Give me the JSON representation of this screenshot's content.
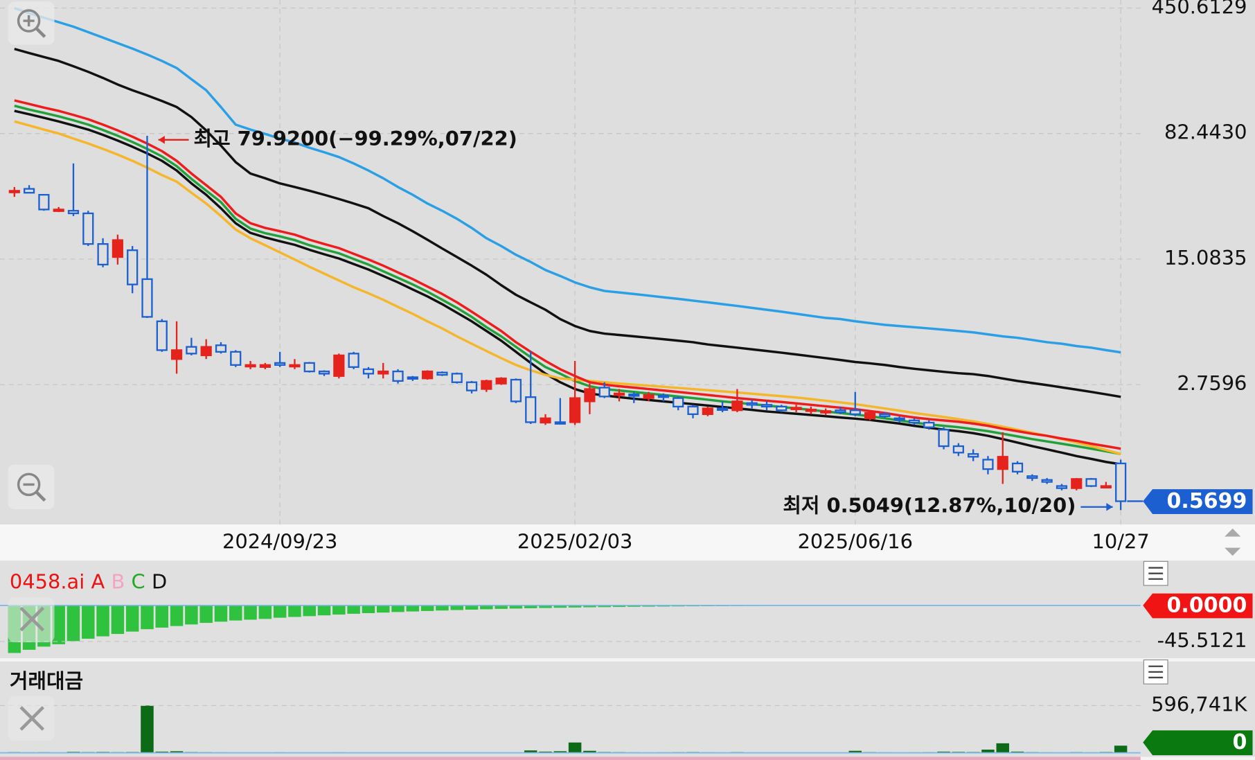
{
  "chart_data": [
    {
      "type": "candlestick",
      "log": true,
      "grid": true,
      "up_color": "#e5231c",
      "down_color": "#1b5fd1",
      "ylim": [
        0.4156,
        502
      ],
      "yticks": [
        450.6129,
        {
          "value": 82.443,
          "label": "82.4430"
        },
        15.0835,
        2.7596
      ],
      "categories": [
        null,
        null,
        null,
        null,
        null,
        null,
        null,
        null,
        null,
        null,
        null,
        null,
        null,
        null,
        null,
        null,
        null,
        null,
        "2024/09/23",
        null,
        null,
        null,
        null,
        null,
        null,
        null,
        null,
        null,
        null,
        null,
        null,
        null,
        null,
        null,
        null,
        null,
        null,
        null,
        "2025/02/03",
        null,
        null,
        null,
        null,
        null,
        null,
        null,
        null,
        null,
        null,
        null,
        null,
        null,
        null,
        null,
        null,
        null,
        null,
        "2025/06/16",
        null,
        null,
        null,
        null,
        null,
        null,
        null,
        null,
        null,
        null,
        null,
        null,
        null,
        null,
        null,
        null,
        null,
        "10/27"
      ],
      "open": [
        37.5,
        39,
        36,
        29,
        29,
        28,
        18.5,
        15.5,
        17,
        11.5,
        6.5,
        3.9,
        4.6,
        4.1,
        4.7,
        4.3,
        3.55,
        3.5,
        3.7,
        3.55,
        3.7,
        3.3,
        3.1,
        4.2,
        3.4,
        3.2,
        3.3,
        3.05,
        3.0,
        3.25,
        3.2,
        2.85,
        2.6,
        2.8,
        2.95,
        2.33,
        1.65,
        1.66,
        1.66,
        2.2,
        2.65,
        2.4,
        2.42,
        2.3,
        2.38,
        2.3,
        2.05,
        1.85,
        2.0,
        1.95,
        2.15,
        2.1,
        2.05,
        1.98,
        1.93,
        1.9,
        1.95,
        1.95,
        1.75,
        1.85,
        1.75,
        1.7,
        1.65,
        1.5,
        1.2,
        1.08,
        1.0,
        0.88,
        0.95,
        0.8,
        0.76,
        0.7,
        0.68,
        0.77,
        0.69,
        0.95
      ],
      "high": [
        40,
        41,
        36,
        30.5,
        55,
        29,
        20,
        21,
        18,
        79.92,
        6.7,
        6.5,
        5.2,
        5.1,
        4.9,
        4.4,
        3.8,
        3.7,
        4.3,
        3.9,
        3.75,
        3.35,
        4.2,
        4.3,
        3.5,
        3.7,
        3.4,
        3.1,
        3.35,
        3.3,
        3.25,
        2.9,
        2.95,
        3.05,
        3.0,
        4.35,
        1.85,
        2.3,
        3.8,
        2.8,
        2.85,
        2.6,
        2.5,
        2.5,
        2.45,
        2.35,
        2.1,
        2.05,
        2.2,
        2.6,
        2.25,
        2.2,
        2.1,
        2.1,
        2.05,
        2.0,
        2.05,
        2.5,
        1.9,
        1.9,
        1.8,
        1.75,
        1.7,
        1.55,
        1.25,
        1.15,
        1.05,
        1.45,
        0.98,
        0.82,
        0.78,
        0.72,
        0.78,
        0.78,
        0.74,
        1.0
      ],
      "low": [
        35,
        37,
        29,
        28.5,
        27,
        18,
        13.5,
        14,
        9.5,
        6.8,
        4.3,
        3.2,
        4.1,
        3.9,
        4.2,
        3.5,
        3.4,
        3.4,
        3.5,
        3.4,
        3.25,
        3.1,
        3.0,
        3.4,
        3.0,
        3.0,
        2.8,
        2.9,
        2.95,
        3.1,
        2.8,
        2.45,
        2.5,
        2.75,
        2.15,
        1.62,
        1.6,
        1.62,
        1.6,
        1.85,
        2.3,
        2.2,
        2.15,
        2.2,
        2.2,
        1.95,
        1.75,
        1.8,
        1.9,
        1.9,
        2.0,
        1.95,
        1.9,
        1.9,
        1.85,
        1.82,
        1.85,
        1.8,
        1.7,
        1.75,
        1.65,
        1.6,
        1.5,
        1.15,
        1.05,
        0.98,
        0.82,
        0.72,
        0.82,
        0.75,
        0.72,
        0.66,
        0.66,
        0.69,
        0.68,
        0.5049
      ],
      "close": [
        38,
        37,
        29.5,
        29.5,
        28,
        18.5,
        14,
        19.5,
        10.7,
        6.9,
        4.4,
        4.4,
        4.2,
        4.6,
        4.3,
        3.6,
        3.6,
        3.6,
        3.6,
        3.6,
        3.3,
        3.2,
        4.1,
        3.5,
        3.2,
        3.3,
        2.9,
        3.0,
        3.3,
        3.15,
        2.85,
        2.55,
        2.9,
        3.0,
        2.2,
        1.66,
        1.75,
        1.64,
        2.3,
        2.6,
        2.35,
        2.45,
        2.38,
        2.4,
        2.33,
        2.05,
        1.85,
        2.0,
        1.98,
        2.2,
        2.1,
        2.05,
        1.95,
        2.02,
        1.97,
        1.93,
        1.9,
        1.85,
        1.88,
        1.8,
        1.72,
        1.65,
        1.55,
        1.2,
        1.1,
        1.04,
        0.88,
        1.04,
        0.85,
        0.78,
        0.74,
        0.68,
        0.77,
        0.7,
        0.7,
        0.5699
      ],
      "overlays": [
        {
          "color": "#2a9fe6",
          "values": [
            450,
            420,
            395,
            372,
            350,
            325,
            302,
            280,
            260,
            240,
            220,
            200,
            172,
            148,
            118,
            93,
            87,
            82,
            77,
            73,
            68,
            64,
            60,
            55,
            50,
            45,
            40,
            36,
            32,
            29,
            26,
            23,
            20,
            18,
            16,
            14.5,
            13,
            12,
            11,
            10.3,
            9.8,
            9.6,
            9.4,
            9.2,
            9.0,
            8.8,
            8.6,
            8.4,
            8.2,
            8.0,
            7.8,
            7.6,
            7.4,
            7.2,
            7.0,
            6.8,
            6.7,
            6.5,
            6.35,
            6.2,
            6.1,
            6.0,
            5.9,
            5.8,
            5.7,
            5.6,
            5.45,
            5.3,
            5.2,
            5.05,
            4.9,
            4.8,
            4.65,
            4.55,
            4.4,
            4.27
          ]
        },
        {
          "color": "#111111",
          "values": [
            259,
            245,
            232,
            220,
            205,
            190,
            175,
            160,
            148,
            138,
            128,
            118,
            103,
            86,
            70,
            56,
            48,
            45,
            42,
            40,
            38,
            36,
            34,
            32,
            30,
            27,
            24.5,
            22,
            19.6,
            17.4,
            15.5,
            13.8,
            12.2,
            10.6,
            9.3,
            8.4,
            7.6,
            6.7,
            6.1,
            5.7,
            5.5,
            5.4,
            5.3,
            5.2,
            5.1,
            5.0,
            4.9,
            4.75,
            4.65,
            4.55,
            4.45,
            4.35,
            4.25,
            4.15,
            4.05,
            3.95,
            3.85,
            3.75,
            3.68,
            3.6,
            3.5,
            3.42,
            3.35,
            3.28,
            3.22,
            3.18,
            3.1,
            3.0,
            2.9,
            2.82,
            2.74,
            2.66,
            2.58,
            2.5,
            2.42,
            2.34
          ]
        },
        {
          "color": "#111111",
          "values": [
            112,
            107,
            102,
            97,
            92,
            87,
            81,
            75,
            69,
            63,
            57,
            50,
            42,
            36,
            30,
            24.5,
            21.5,
            20.2,
            19.2,
            18.3,
            17.1,
            16.1,
            15.2,
            14.1,
            13.1,
            12,
            11,
            10,
            9.1,
            8.2,
            7.3,
            6.5,
            5.7,
            5.0,
            4.3,
            3.7,
            3.2,
            2.85,
            2.6,
            2.45,
            2.38,
            2.33,
            2.28,
            2.24,
            2.2,
            2.16,
            2.12,
            2.08,
            2.04,
            2.0,
            1.96,
            1.92,
            1.89,
            1.86,
            1.83,
            1.8,
            1.77,
            1.74,
            1.71,
            1.67,
            1.63,
            1.58,
            1.54,
            1.5,
            1.47,
            1.43,
            1.38,
            1.32,
            1.26,
            1.2,
            1.15,
            1.1,
            1.05,
            1.01,
            0.97,
            0.94
          ]
        },
        {
          "color": "#22a03a",
          "values": [
            120,
            114,
            109,
            104,
            98.6,
            93,
            86.5,
            80,
            73.5,
            67,
            60.5,
            53,
            44.6,
            38.1,
            32.6,
            26,
            22.8,
            21.4,
            20.5,
            19.5,
            18.2,
            17.2,
            16.3,
            15.1,
            14,
            12.8,
            11.7,
            10.7,
            9.7,
            8.7,
            7.8,
            6.9,
            6.0,
            5.3,
            4.6,
            4.0,
            3.5,
            3.2,
            2.9,
            2.7,
            2.6,
            2.55,
            2.5,
            2.45,
            2.4,
            2.35,
            2.3,
            2.25,
            2.2,
            2.16,
            2.12,
            2.08,
            2.04,
            2.0,
            1.96,
            1.92,
            1.88,
            1.84,
            1.8,
            1.75,
            1.7,
            1.65,
            1.61,
            1.58,
            1.55,
            1.51,
            1.47,
            1.42,
            1.37,
            1.32,
            1.28,
            1.24,
            1.2,
            1.16,
            1.12,
            1.08
          ]
        },
        {
          "color": "#f5b62a",
          "values": [
            97,
            92,
            87,
            82.5,
            77,
            72,
            67,
            62,
            57,
            52,
            47,
            43,
            37,
            32,
            27,
            22.5,
            20,
            18.2,
            16.5,
            15,
            13.6,
            12.4,
            11.3,
            10.3,
            9.5,
            8.7,
            7.9,
            7.2,
            6.5,
            5.9,
            5.3,
            4.8,
            4.35,
            3.95,
            3.6,
            3.35,
            3.15,
            3.0,
            2.95,
            2.9,
            2.85,
            2.8,
            2.76,
            2.72,
            2.68,
            2.64,
            2.6,
            2.56,
            2.52,
            2.48,
            2.44,
            2.4,
            2.36,
            2.32,
            2.27,
            2.22,
            2.17,
            2.12,
            2.06,
            2.0,
            1.94,
            1.88,
            1.83,
            1.78,
            1.73,
            1.68,
            1.62,
            1.56,
            1.5,
            1.44,
            1.38,
            1.32,
            1.26,
            1.2,
            1.14,
            1.08
          ]
        },
        {
          "color": "#ee1c1c",
          "values": [
            129,
            123,
            117,
            112,
            106,
            100,
            93,
            86,
            79,
            72,
            65,
            57,
            48,
            41,
            35,
            28,
            24.5,
            23,
            22,
            21,
            19.6,
            18.5,
            17.5,
            16.2,
            15,
            13.8,
            12.6,
            11.5,
            10.4,
            9.4,
            8.4,
            7.4,
            6.5,
            5.7,
            4.9,
            4.3,
            3.8,
            3.4,
            3.1,
            2.85,
            2.76,
            2.7,
            2.65,
            2.6,
            2.55,
            2.5,
            2.45,
            2.4,
            2.35,
            2.3,
            2.26,
            2.22,
            2.18,
            2.14,
            2.1,
            2.06,
            2.02,
            1.98,
            1.93,
            1.88,
            1.82,
            1.77,
            1.73,
            1.7,
            1.67,
            1.63,
            1.58,
            1.52,
            1.47,
            1.42,
            1.38,
            1.33,
            1.29,
            1.24,
            1.2,
            1.16
          ]
        }
      ],
      "high_label": "최고 79.9200(−99.29%,07/22)",
      "low_label": "최저 0.5049(12.87%,10/20)"
    },
    {
      "type": "bar",
      "grid": true,
      "legend": [
        {
          "text": "0458.ai",
          "color": "#ee1111"
        },
        {
          "text": "A",
          "color": "#ee1111"
        },
        {
          "text": "B",
          "color": "#f5a3c4"
        },
        {
          "text": "C",
          "color": "#22aa22"
        },
        {
          "text": "D",
          "color": "#111111"
        }
      ],
      "color": "#2ec23e",
      "zero_badge_color": "#f01414",
      "ylim": [
        -64.7,
        54.6
      ],
      "yticks": [
        {
          "value": 0,
          "label": "0.0000"
        },
        -45.5121
      ],
      "values": [
        -60,
        -56,
        -52,
        -49,
        -45,
        -42,
        -39,
        -36,
        -33,
        -30,
        -28,
        -26,
        -24,
        -22,
        -20.5,
        -19,
        -18,
        -17,
        -15.5,
        -14.5,
        -13.5,
        -12.5,
        -11.5,
        -10.5,
        -9.7,
        -9,
        -8.3,
        -7.6,
        -7,
        -6.4,
        -5.8,
        -5.3,
        -4.8,
        -4.3,
        -3.9,
        -3.5,
        -3.2,
        -2.9,
        -2.6,
        -2.3,
        -2.1,
        -1.9,
        -1.7,
        -1.5,
        -1.35,
        -1.2,
        -1.05,
        -0.95,
        -0.85,
        -0.75,
        -0.65,
        -0.55,
        -0.5,
        -0.45,
        -0.4,
        -0.35,
        -0.3,
        -0.25,
        -0.2,
        -0.18,
        -0.16,
        -0.14,
        -0.12,
        -0.1,
        -0.09,
        -0.08,
        -0.07,
        -0.06,
        -0.05,
        -0.04,
        -0.03,
        -0.03,
        -0.02,
        -0.02,
        -0.01,
        -0.01
      ]
    },
    {
      "type": "bar",
      "grid": true,
      "title": "거래대금",
      "title_color": "#0a6b14",
      "color": "#0d6b18",
      "zero_badge_color": "#0a7a10",
      "ylim": [
        0,
        1153000
      ],
      "yticks": [
        0,
        {
          "value": 596741,
          "label": "596,741K"
        }
      ],
      "values": [
        8000,
        6000,
        7000,
        5000,
        12000,
        9000,
        11000,
        8000,
        10000,
        596741,
        15000,
        20000,
        9000,
        7000,
        6000,
        5000,
        5000,
        4000,
        6000,
        4000,
        4000,
        3000,
        6000,
        5000,
        3000,
        4000,
        3000,
        3000,
        3000,
        3000,
        3000,
        4000,
        3000,
        3000,
        5000,
        30000,
        15000,
        20000,
        130000,
        25000,
        10000,
        8000,
        6000,
        5000,
        6000,
        7000,
        9000,
        6000,
        5000,
        8000,
        5000,
        5000,
        4000,
        4000,
        5000,
        4000,
        5000,
        25000,
        8000,
        6000,
        5000,
        6000,
        7000,
        15000,
        12000,
        10000,
        40000,
        120000,
        15000,
        8000,
        6000,
        5000,
        8000,
        6000,
        10000,
        90000
      ]
    }
  ]
}
